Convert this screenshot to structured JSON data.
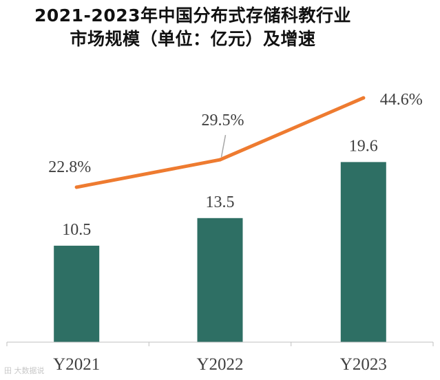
{
  "title": {
    "line1": "2021-2023年中国分布式存储科教行业",
    "line2": "市场规模（单位：亿元）及增速"
  },
  "watermark": "田 大数据说",
  "chart_data": {
    "type": "bar+line",
    "categories": [
      "Y2021",
      "Y2022",
      "Y2023"
    ],
    "series": [
      {
        "name": "市场规模",
        "type": "bar",
        "values": [
          10.5,
          13.5,
          19.6
        ],
        "labels": [
          "10.5",
          "13.5",
          "19.6"
        ],
        "color": "#2E6F64"
      },
      {
        "name": "增速",
        "type": "line",
        "values": [
          22.8,
          29.5,
          44.6
        ],
        "labels": [
          "22.8%",
          "29.5%",
          "44.6%"
        ],
        "color": "#EE7B30"
      }
    ],
    "bar_ylim": [
      0,
      26
    ],
    "line_ylim": [
      -15,
      50
    ],
    "axis_color": "#BFBFBF",
    "label_color": "#404040"
  }
}
